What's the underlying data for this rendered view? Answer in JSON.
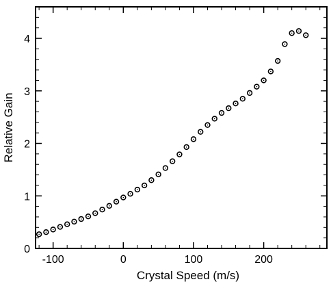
{
  "chart_data": {
    "type": "scatter",
    "title": "",
    "xlabel": "Crystal Speed  (m/s)",
    "ylabel": "Relative Gain",
    "xlim": [
      -125,
      290
    ],
    "ylim": [
      0,
      4.6
    ],
    "x_ticks": [
      -100,
      0,
      100,
      200
    ],
    "x_tick_labels": [
      "-100",
      "0",
      "100",
      "200"
    ],
    "y_ticks": [
      0,
      1,
      2,
      3,
      4
    ],
    "y_tick_labels": [
      "0",
      "1",
      "2",
      "3",
      "4"
    ],
    "grid": false,
    "marker": "open-circle",
    "marker_color": "#000000",
    "series": [
      {
        "x": [
          -120,
          -110,
          -100,
          -90,
          -80,
          -70,
          -60,
          -50,
          -40,
          -30,
          -20,
          -10,
          0,
          10,
          20,
          30,
          40,
          50,
          60,
          70,
          80,
          90,
          100,
          110,
          120,
          130,
          140,
          150,
          160,
          170,
          180,
          190,
          200,
          210,
          220,
          230,
          240,
          250,
          260
        ],
        "y": [
          0.27,
          0.31,
          0.36,
          0.41,
          0.46,
          0.51,
          0.56,
          0.61,
          0.67,
          0.74,
          0.81,
          0.89,
          0.97,
          1.04,
          1.12,
          1.2,
          1.3,
          1.41,
          1.53,
          1.66,
          1.79,
          1.93,
          2.08,
          2.22,
          2.35,
          2.47,
          2.58,
          2.67,
          2.76,
          2.85,
          2.96,
          3.08,
          3.2,
          3.37,
          3.57,
          3.89,
          4.1,
          4.14,
          4.06
        ]
      }
    ]
  }
}
